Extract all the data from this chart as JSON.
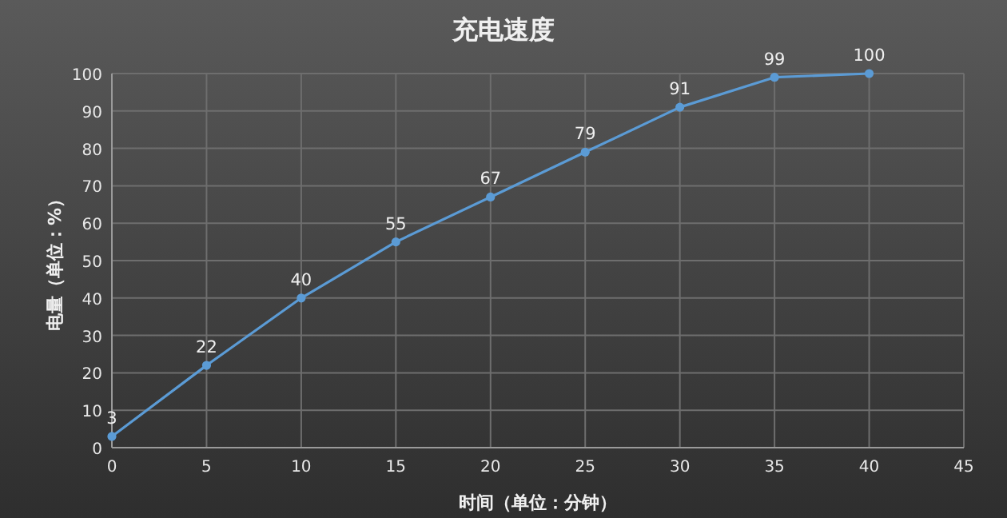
{
  "chart_data": {
    "type": "line",
    "title": "充电速度",
    "xlabel": "时间（单位：分钟）",
    "ylabel": "电量（单位：%）",
    "x": [
      0,
      5,
      10,
      15,
      20,
      25,
      30,
      35,
      40
    ],
    "series": [
      {
        "color": "#5b9bd5",
        "values": [
          3,
          22,
          40,
          55,
          67,
          79,
          91,
          99,
          100
        ]
      }
    ],
    "xlim": [
      0,
      45
    ],
    "xticks": [
      0,
      5,
      10,
      15,
      20,
      25,
      30,
      35,
      40,
      45
    ],
    "ylim": [
      0,
      100
    ],
    "yticks": [
      0,
      10,
      20,
      30,
      40,
      50,
      60,
      70,
      80,
      90,
      100
    ],
    "grid": true,
    "marker": "circle",
    "line_style": "solid",
    "data_labels": true
  }
}
